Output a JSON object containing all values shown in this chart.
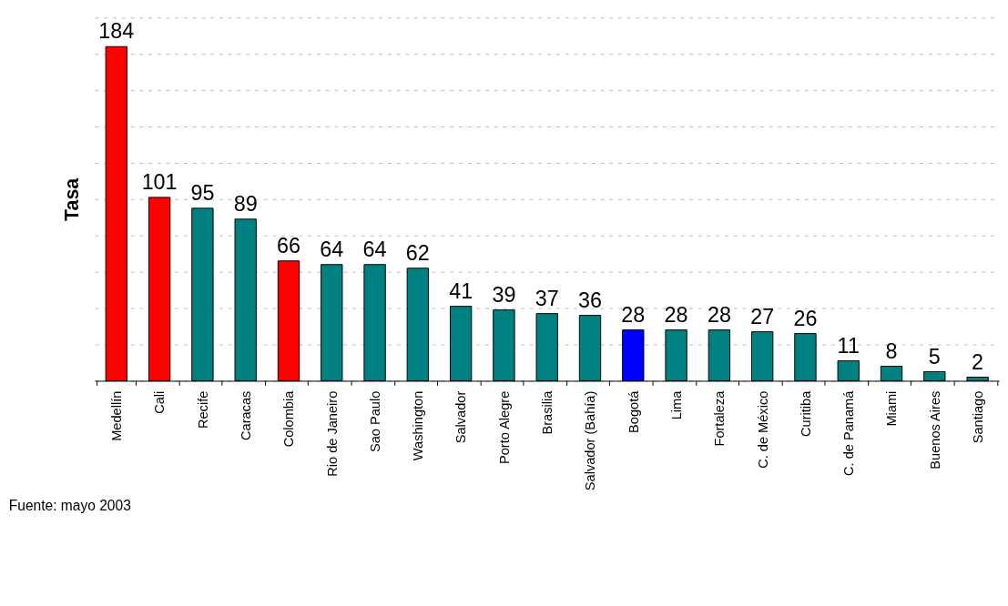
{
  "chart_data": {
    "type": "bar",
    "ylabel": "Tasa",
    "categories": [
      "Medellín",
      "Cali",
      "Recife",
      "Caracas",
      "Colombia",
      "Rio de Janeiro",
      "Sao Paulo",
      "Washington",
      "Salvador",
      "Porto Alegre",
      "Brasilia",
      "Salvador (Bahía)",
      "Bogotá",
      "Lima",
      "Fortaleza",
      "C. de México",
      "Curitiba",
      "C. de Panamá",
      "Miami",
      "Buenos Aires",
      "Santiago"
    ],
    "values": [
      184,
      101,
      95,
      89,
      66,
      64,
      64,
      62,
      41,
      39,
      37,
      36,
      28,
      28,
      28,
      27,
      26,
      11,
      8,
      5,
      2
    ],
    "colors": [
      "#ff0000",
      "#ff0000",
      "#008080",
      "#008080",
      "#ff0000",
      "#008080",
      "#008080",
      "#008080",
      "#008080",
      "#008080",
      "#008080",
      "#008080",
      "#0000ff",
      "#008080",
      "#008080",
      "#008080",
      "#008080",
      "#008080",
      "#008080",
      "#008080",
      "#008080"
    ],
    "ylim": [
      0,
      200
    ],
    "yticks": [
      {
        "value": 0,
        "label": null
      },
      {
        "value": 20,
        "label": null
      },
      {
        "value": 40,
        "label": null
      },
      {
        "value": 60,
        "label": null
      },
      {
        "value": 80,
        "label": null
      },
      {
        "value": 100,
        "label": null
      },
      {
        "value": 120,
        "label": null
      },
      {
        "value": 140,
        "label": null
      },
      {
        "value": 160,
        "label": null
      },
      {
        "value": 180,
        "label": null
      },
      {
        "value": 200,
        "label": null
      }
    ],
    "grid": "y",
    "tick_labels": "x",
    "data_labels": true,
    "annotations": [
      "Fuente: mayo 2003"
    ]
  }
}
